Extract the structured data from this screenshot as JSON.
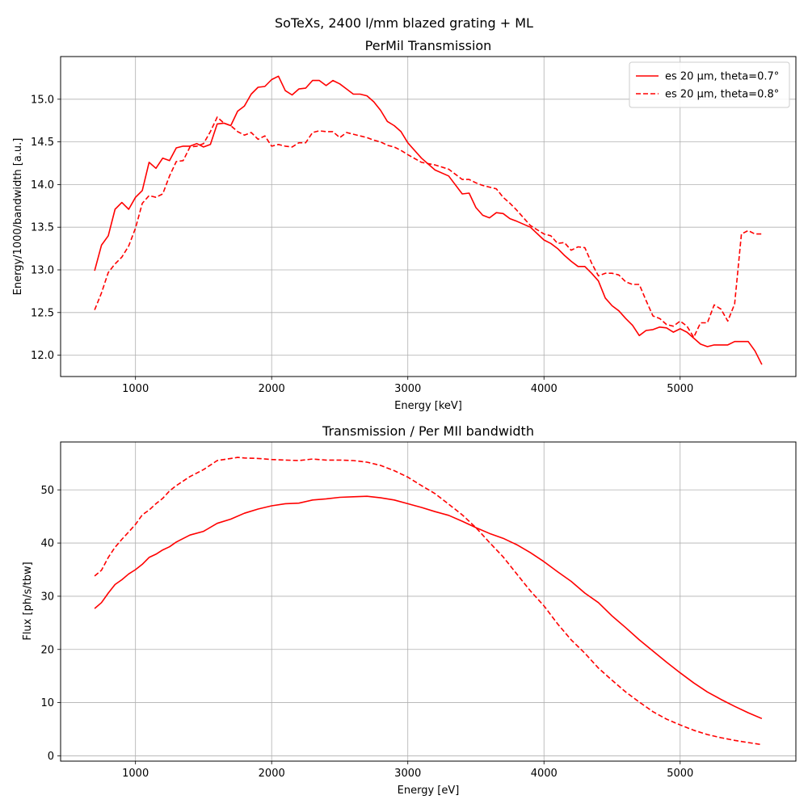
{
  "figure": {
    "suptitle": "SoTeXs, 2400 l/mm blazed grating + ML"
  },
  "chart_data": [
    {
      "type": "line",
      "title": "PerMil Transmission",
      "xlabel": "Energy [keV]",
      "ylabel": "Energy/1000/bandwidth [a.u.]",
      "xlim": [
        450,
        5850
      ],
      "ylim": [
        11.75,
        15.5
      ],
      "xticks": [
        1000,
        2000,
        3000,
        4000,
        5000
      ],
      "yticks": [
        12.0,
        12.5,
        13.0,
        13.5,
        14.0,
        14.5,
        15.0
      ],
      "grid": true,
      "legend_position": "top-right",
      "series": [
        {
          "name": "es 20 µm, theta=0.7°",
          "style": "solid",
          "color": "#ff0000",
          "x": [
            700,
            750,
            800,
            850,
            900,
            950,
            1000,
            1050,
            1100,
            1150,
            1200,
            1250,
            1300,
            1350,
            1400,
            1450,
            1500,
            1550,
            1600,
            1650,
            1700,
            1750,
            1800,
            1850,
            1900,
            1950,
            2000,
            2050,
            2100,
            2150,
            2200,
            2250,
            2300,
            2350,
            2400,
            2450,
            2500,
            2550,
            2600,
            2650,
            2700,
            2750,
            2800,
            2850,
            2900,
            2950,
            3000,
            3100,
            3200,
            3300,
            3400,
            3450,
            3500,
            3550,
            3600,
            3650,
            3700,
            3750,
            3800,
            3900,
            4000,
            4050,
            4100,
            4150,
            4200,
            4250,
            4300,
            4350,
            4400,
            4450,
            4500,
            4550,
            4600,
            4650,
            4700,
            4750,
            4800,
            4850,
            4900,
            4950,
            5000,
            5050,
            5100,
            5150,
            5200,
            5250,
            5300,
            5350,
            5400,
            5450,
            5500,
            5550,
            5600
          ],
          "y": [
            12.99,
            13.29,
            13.4,
            13.71,
            13.79,
            13.71,
            13.85,
            13.93,
            14.26,
            14.19,
            14.31,
            14.28,
            14.43,
            14.45,
            14.45,
            14.48,
            14.44,
            14.47,
            14.71,
            14.72,
            14.69,
            14.86,
            14.92,
            15.06,
            15.14,
            15.15,
            15.23,
            15.27,
            15.1,
            15.05,
            15.12,
            15.13,
            15.22,
            15.22,
            15.16,
            15.22,
            15.18,
            15.12,
            15.06,
            15.06,
            15.04,
            14.97,
            14.87,
            14.74,
            14.69,
            14.62,
            14.49,
            14.31,
            14.17,
            14.1,
            13.89,
            13.9,
            13.73,
            13.64,
            13.61,
            13.67,
            13.66,
            13.6,
            13.57,
            13.5,
            13.35,
            13.31,
            13.25,
            13.17,
            13.1,
            13.04,
            13.04,
            12.96,
            12.87,
            12.67,
            12.58,
            12.52,
            12.43,
            12.35,
            12.23,
            12.29,
            12.3,
            12.33,
            12.32,
            12.27,
            12.31,
            12.27,
            12.2,
            12.13,
            12.1,
            12.12,
            12.12,
            12.12,
            12.16,
            12.16,
            12.16,
            12.05,
            11.89
          ]
        },
        {
          "name": "es 20 µm, theta=0.8°",
          "style": "dashed",
          "color": "#ff0000",
          "x": [
            700,
            750,
            800,
            850,
            900,
            950,
            1000,
            1050,
            1100,
            1150,
            1200,
            1250,
            1300,
            1350,
            1400,
            1450,
            1500,
            1550,
            1600,
            1650,
            1700,
            1750,
            1800,
            1850,
            1900,
            1950,
            2000,
            2050,
            2100,
            2150,
            2200,
            2250,
            2300,
            2350,
            2400,
            2450,
            2500,
            2550,
            2600,
            2650,
            2700,
            2750,
            2800,
            2850,
            2900,
            2950,
            3000,
            3100,
            3200,
            3300,
            3400,
            3450,
            3500,
            3550,
            3600,
            3650,
            3700,
            3750,
            3800,
            3900,
            4000,
            4050,
            4100,
            4150,
            4200,
            4250,
            4300,
            4350,
            4400,
            4450,
            4500,
            4550,
            4600,
            4650,
            4700,
            4750,
            4800,
            4850,
            4900,
            4950,
            5000,
            5050,
            5100,
            5150,
            5200,
            5250,
            5300,
            5350,
            5400,
            5450,
            5500,
            5550,
            5600
          ],
          "y": [
            12.53,
            12.73,
            12.97,
            13.07,
            13.15,
            13.28,
            13.49,
            13.78,
            13.87,
            13.85,
            13.89,
            14.1,
            14.27,
            14.28,
            14.44,
            14.45,
            14.48,
            14.62,
            14.79,
            14.72,
            14.69,
            14.62,
            14.58,
            14.61,
            14.53,
            14.57,
            14.45,
            14.47,
            14.45,
            14.44,
            14.49,
            14.49,
            14.61,
            14.63,
            14.62,
            14.62,
            14.55,
            14.61,
            14.59,
            14.57,
            14.55,
            14.52,
            14.5,
            14.46,
            14.44,
            14.4,
            14.35,
            14.26,
            14.23,
            14.18,
            14.06,
            14.06,
            14.02,
            13.99,
            13.97,
            13.95,
            13.85,
            13.78,
            13.7,
            13.52,
            13.42,
            13.4,
            13.31,
            13.32,
            13.23,
            13.27,
            13.26,
            13.08,
            12.93,
            12.96,
            12.96,
            12.94,
            12.86,
            12.83,
            12.83,
            12.64,
            12.46,
            12.43,
            12.36,
            12.34,
            12.4,
            12.34,
            12.21,
            12.38,
            12.38,
            12.59,
            12.54,
            12.4,
            12.6,
            13.42,
            13.46,
            13.42,
            13.42
          ]
        }
      ]
    },
    {
      "type": "line",
      "title": "Transmission / Per MIl bandwidth",
      "xlabel": "Energy [eV]",
      "ylabel": "Flux [ph/s/tbw]",
      "xlim": [
        450,
        5850
      ],
      "ylim": [
        -1,
        59
      ],
      "xticks": [
        1000,
        2000,
        3000,
        4000,
        5000
      ],
      "yticks": [
        0,
        10,
        20,
        30,
        40,
        50
      ],
      "grid": true,
      "series": [
        {
          "style": "solid",
          "color": "#ff0000",
          "x": [
            700,
            750,
            800,
            850,
            900,
            950,
            1000,
            1050,
            1100,
            1150,
            1200,
            1250,
            1300,
            1400,
            1500,
            1600,
            1700,
            1800,
            1900,
            2000,
            2100,
            2200,
            2300,
            2400,
            2500,
            2600,
            2700,
            2800,
            2900,
            3000,
            3100,
            3200,
            3300,
            3400,
            3500,
            3600,
            3700,
            3800,
            3900,
            4000,
            4100,
            4200,
            4300,
            4400,
            4500,
            4600,
            4700,
            4800,
            4900,
            5000,
            5100,
            5200,
            5300,
            5400,
            5500,
            5600
          ],
          "y": [
            27.7,
            28.8,
            30.6,
            32.2,
            33.1,
            34.2,
            35.0,
            36.0,
            37.3,
            37.9,
            38.7,
            39.3,
            40.2,
            41.5,
            42.2,
            43.7,
            44.5,
            45.6,
            46.4,
            47.0,
            47.4,
            47.5,
            48.1,
            48.3,
            48.6,
            48.7,
            48.8,
            48.5,
            48.1,
            47.4,
            46.7,
            45.9,
            45.2,
            44.1,
            42.9,
            41.8,
            40.9,
            39.7,
            38.2,
            36.5,
            34.6,
            32.8,
            30.6,
            28.8,
            26.3,
            24.1,
            21.8,
            19.7,
            17.6,
            15.6,
            13.7,
            12.0,
            10.6,
            9.3,
            8.1,
            7.0
          ]
        },
        {
          "style": "dashed",
          "color": "#ff0000",
          "x": [
            700,
            750,
            800,
            850,
            900,
            950,
            1000,
            1050,
            1100,
            1150,
            1200,
            1250,
            1300,
            1400,
            1500,
            1600,
            1700,
            1750,
            1800,
            1900,
            2000,
            2100,
            2200,
            2300,
            2400,
            2500,
            2600,
            2700,
            2800,
            2900,
            3000,
            3100,
            3200,
            3300,
            3400,
            3500,
            3600,
            3700,
            3800,
            3900,
            4000,
            4100,
            4200,
            4300,
            4400,
            4500,
            4600,
            4700,
            4800,
            4900,
            5000,
            5100,
            5200,
            5300,
            5400,
            5500,
            5600
          ],
          "y": [
            33.8,
            34.9,
            37.3,
            39.2,
            40.7,
            42.1,
            43.5,
            45.3,
            46.2,
            47.4,
            48.4,
            49.8,
            50.8,
            52.5,
            53.8,
            55.5,
            55.9,
            56.1,
            56.0,
            55.9,
            55.7,
            55.6,
            55.5,
            55.8,
            55.6,
            55.6,
            55.5,
            55.2,
            54.6,
            53.6,
            52.4,
            50.8,
            49.3,
            47.3,
            45.3,
            42.9,
            40.1,
            37.4,
            34.2,
            31.0,
            28.2,
            24.8,
            21.8,
            19.3,
            16.5,
            14.2,
            12.0,
            10.1,
            8.3,
            6.9,
            5.8,
            4.8,
            4.0,
            3.4,
            2.9,
            2.5,
            2.1
          ]
        }
      ]
    }
  ]
}
